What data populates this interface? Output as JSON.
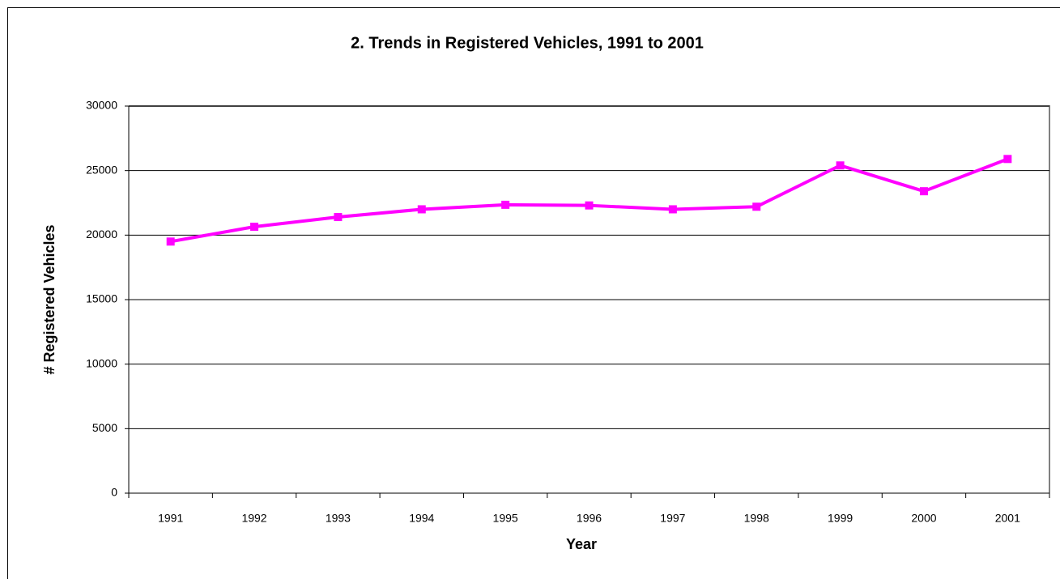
{
  "chart_data": {
    "type": "line",
    "title": "2. Trends in Registered Vehicles, 1991 to 2001",
    "x_label": "Year",
    "y_label": "# Registered Vehicles",
    "categories": [
      "1991",
      "1992",
      "1993",
      "1994",
      "1995",
      "1996",
      "1997",
      "1998",
      "1999",
      "2000",
      "2001"
    ],
    "values": [
      19500,
      20650,
      21400,
      22000,
      22350,
      22300,
      22000,
      22200,
      25400,
      23400,
      25900
    ],
    "color": "#ff00ff",
    "ylim": [
      0,
      30000
    ],
    "yticks": [
      0,
      5000,
      10000,
      15000,
      20000,
      25000,
      30000
    ],
    "grid": true
  }
}
